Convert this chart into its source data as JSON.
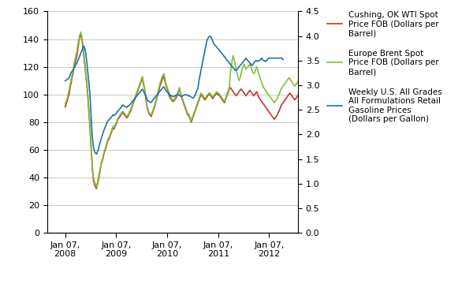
{
  "title": "",
  "ylim_left": [
    0,
    160
  ],
  "ylim_right": [
    0,
    4.5
  ],
  "left_yticks": [
    0,
    20,
    40,
    60,
    80,
    100,
    120,
    140,
    160
  ],
  "right_yticks": [
    0,
    0.5,
    1.0,
    1.5,
    2.0,
    2.5,
    3.0,
    3.5,
    4.0,
    4.5
  ],
  "colors": {
    "wti": "#C0392B",
    "brent": "#7DC13A",
    "gasoline": "#2471A3"
  },
  "legend_wti": "Cushing, OK WTI Spot\nPrice FOB (Dollars per\nBarrel)",
  "legend_brent": "Europe Brent Spot\nPrice FOB (Dollars per\nBarrel)",
  "legend_gasoline": "Weekly U.S. All Grades\nAll Formulations Retail\nGasoline Prices\n(Dollars per Gallon)",
  "wti_data": [
    91,
    93,
    95,
    98,
    100,
    105,
    108,
    112,
    115,
    120,
    122,
    125,
    128,
    133,
    138,
    142,
    143,
    140,
    135,
    128,
    122,
    115,
    108,
    100,
    90,
    80,
    68,
    55,
    45,
    38,
    35,
    33,
    32,
    35,
    38,
    42,
    46,
    50,
    52,
    55,
    58,
    60,
    62,
    65,
    67,
    68,
    70,
    72,
    74,
    76,
    75,
    77,
    78,
    80,
    82,
    83,
    84,
    85,
    86,
    87,
    86,
    85,
    84,
    83,
    84,
    85,
    87,
    88,
    90,
    92,
    94,
    96,
    98,
    100,
    102,
    104,
    106,
    108,
    110,
    112,
    108,
    105,
    100,
    95,
    90,
    88,
    86,
    85,
    84,
    86,
    88,
    90,
    92,
    95,
    98,
    100,
    103,
    106,
    108,
    110,
    112,
    113,
    110,
    107,
    105,
    103,
    100,
    98,
    97,
    96,
    95,
    95,
    96,
    97,
    98,
    100,
    102,
    104,
    100,
    98,
    96,
    94,
    92,
    90,
    88,
    86,
    85,
    84,
    82,
    80,
    82,
    84,
    86,
    88,
    90,
    92,
    94,
    96,
    98,
    100,
    99,
    98,
    97,
    96,
    97,
    98,
    99,
    100,
    100,
    99,
    98,
    97,
    98,
    99,
    100,
    101,
    100,
    100,
    99,
    98,
    97,
    96,
    95,
    94,
    96,
    98,
    100,
    102,
    104,
    105,
    104,
    103,
    102,
    101,
    100,
    99,
    100,
    101,
    102,
    103,
    104,
    103,
    102,
    101,
    100,
    99,
    100,
    101,
    102,
    103,
    102,
    101,
    100,
    99,
    100,
    101,
    102,
    100,
    98,
    97,
    96,
    95,
    94,
    93,
    92,
    91,
    90,
    89,
    88,
    87,
    86,
    85,
    84,
    83,
    82,
    83,
    84,
    85,
    87,
    88,
    90,
    92,
    93,
    94,
    95,
    96,
    97,
    98,
    99,
    100,
    101,
    100,
    99,
    98,
    97,
    96,
    97,
    98,
    99,
    100,
    100,
    99,
    100,
    100,
    101,
    102,
    101,
    100,
    100,
    99,
    100,
    101,
    102,
    101,
    100,
    99,
    100,
    101,
    100,
    99
  ],
  "brent_data": [
    93,
    95,
    97,
    100,
    103,
    107,
    110,
    114,
    117,
    122,
    125,
    128,
    131,
    136,
    140,
    143,
    145,
    142,
    137,
    130,
    124,
    117,
    110,
    102,
    92,
    82,
    70,
    57,
    46,
    40,
    37,
    35,
    33,
    36,
    40,
    44,
    47,
    51,
    53,
    56,
    59,
    61,
    63,
    66,
    68,
    69,
    71,
    73,
    75,
    77,
    76,
    78,
    79,
    81,
    83,
    84,
    85,
    86,
    87,
    88,
    87,
    86,
    85,
    84,
    85,
    86,
    88,
    89,
    91,
    93,
    95,
    97,
    99,
    101,
    103,
    105,
    107,
    109,
    111,
    113,
    109,
    106,
    101,
    96,
    91,
    89,
    87,
    86,
    85,
    87,
    89,
    91,
    93,
    96,
    99,
    102,
    105,
    108,
    110,
    112,
    114,
    115,
    112,
    108,
    106,
    104,
    102,
    100,
    98,
    97,
    96,
    96,
    97,
    98,
    99,
    101,
    103,
    105,
    101,
    99,
    97,
    95,
    93,
    91,
    89,
    87,
    86,
    85,
    83,
    81,
    83,
    85,
    87,
    89,
    91,
    93,
    95,
    97,
    99,
    101,
    100,
    99,
    98,
    97,
    98,
    99,
    100,
    101,
    101,
    100,
    99,
    98,
    99,
    100,
    101,
    102,
    101,
    101,
    100,
    99,
    98,
    97,
    96,
    95,
    97,
    99,
    101,
    103,
    105,
    115,
    120,
    125,
    128,
    125,
    122,
    118,
    115,
    112,
    110,
    112,
    115,
    118,
    120,
    122,
    120,
    118,
    119,
    120,
    121,
    122,
    120,
    118,
    116,
    115,
    116,
    118,
    120,
    118,
    115,
    113,
    111,
    109,
    107,
    105,
    104,
    103,
    102,
    101,
    100,
    99,
    98,
    97,
    96,
    95,
    94,
    95,
    96,
    97,
    99,
    100,
    102,
    104,
    105,
    106,
    107,
    108,
    109,
    110,
    111,
    112,
    111,
    110,
    109,
    108,
    107,
    106,
    107,
    108,
    109,
    110,
    110,
    109,
    110,
    110,
    111,
    112,
    111,
    110,
    110,
    109,
    110,
    111,
    112,
    111,
    110,
    109,
    110,
    111,
    110,
    109
  ],
  "gasoline_data": [
    3.09,
    3.1,
    3.12,
    3.13,
    3.15,
    3.2,
    3.25,
    3.28,
    3.3,
    3.35,
    3.38,
    3.42,
    3.45,
    3.5,
    3.55,
    3.6,
    3.65,
    3.7,
    3.75,
    3.8,
    3.75,
    3.65,
    3.5,
    3.3,
    3.1,
    2.9,
    2.6,
    2.2,
    1.9,
    1.75,
    1.65,
    1.62,
    1.6,
    1.65,
    1.7,
    1.78,
    1.85,
    1.92,
    1.98,
    2.05,
    2.1,
    2.15,
    2.2,
    2.25,
    2.28,
    2.3,
    2.32,
    2.35,
    2.37,
    2.4,
    2.38,
    2.4,
    2.42,
    2.45,
    2.48,
    2.5,
    2.52,
    2.55,
    2.57,
    2.6,
    2.58,
    2.57,
    2.56,
    2.55,
    2.57,
    2.58,
    2.6,
    2.62,
    2.65,
    2.68,
    2.7,
    2.72,
    2.75,
    2.77,
    2.8,
    2.82,
    2.85,
    2.87,
    2.9,
    2.92,
    2.88,
    2.85,
    2.8,
    2.75,
    2.7,
    2.68,
    2.67,
    2.65,
    2.65,
    2.68,
    2.7,
    2.73,
    2.75,
    2.78,
    2.8,
    2.83,
    2.85,
    2.88,
    2.9,
    2.92,
    2.95,
    2.97,
    2.93,
    2.9,
    2.87,
    2.85,
    2.83,
    2.8,
    2.79,
    2.78,
    2.77,
    2.77,
    2.78,
    2.79,
    2.8,
    2.82,
    2.8,
    2.79,
    2.78,
    2.77,
    2.78,
    2.79,
    2.8,
    2.81,
    2.8,
    2.8,
    2.79,
    2.78,
    2.77,
    2.76,
    2.75,
    2.74,
    2.76,
    2.8,
    2.85,
    2.9,
    2.95,
    3.1,
    3.2,
    3.3,
    3.4,
    3.5,
    3.6,
    3.7,
    3.8,
    3.9,
    3.95,
    3.98,
    4.0,
    3.98,
    3.95,
    3.9,
    3.85,
    3.82,
    3.8,
    3.78,
    3.75,
    3.73,
    3.7,
    3.68,
    3.65,
    3.63,
    3.6,
    3.58,
    3.55,
    3.52,
    3.5,
    3.48,
    3.45,
    3.43,
    3.4,
    3.38,
    3.35,
    3.33,
    3.3,
    3.3,
    3.32,
    3.35,
    3.38,
    3.4,
    3.42,
    3.45,
    3.47,
    3.5,
    3.52,
    3.55,
    3.52,
    3.5,
    3.48,
    3.45,
    3.43,
    3.4,
    3.42,
    3.45,
    3.48,
    3.5,
    3.5,
    3.48,
    3.5,
    3.5,
    3.52,
    3.55,
    3.52,
    3.5,
    3.5,
    3.48,
    3.5,
    3.52,
    3.55,
    3.55,
    3.55,
    3.55,
    3.55,
    3.55,
    3.55,
    3.55,
    3.55,
    3.55,
    3.55,
    3.55,
    3.55,
    3.55,
    3.55,
    3.52
  ],
  "background_color": "#ffffff",
  "grid_color": "#BFBFBF"
}
